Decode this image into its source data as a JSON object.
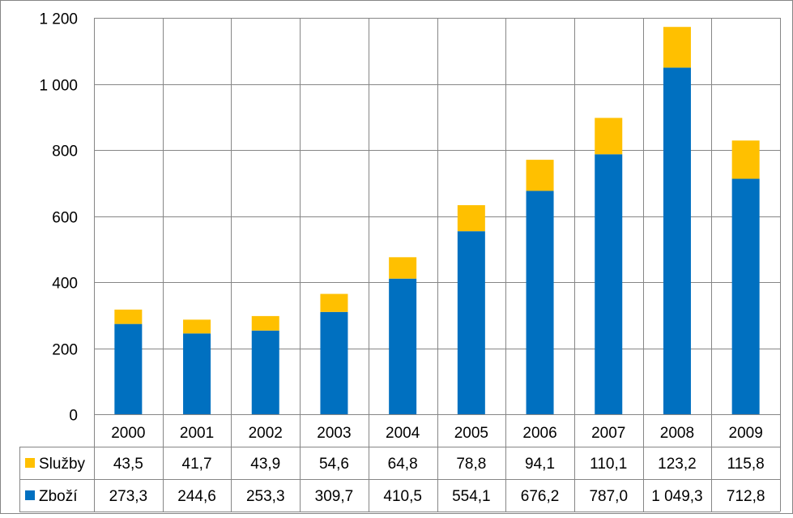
{
  "chart_data": {
    "type": "bar",
    "stacked": true,
    "categories": [
      "2000",
      "2001",
      "2002",
      "2003",
      "2004",
      "2005",
      "2006",
      "2007",
      "2008",
      "2009"
    ],
    "series": [
      {
        "name": "Zboží",
        "color": "#0070C0",
        "values": [
          273.3,
          244.6,
          253.3,
          309.7,
          410.5,
          554.1,
          676.2,
          787.0,
          1049.3,
          712.8
        ],
        "labels": [
          "273,3",
          "244,6",
          "253,3",
          "309,7",
          "410,5",
          "554,1",
          "676,2",
          "787,0",
          "1 049,3",
          "712,8"
        ]
      },
      {
        "name": "Služby",
        "color": "#FFC000",
        "values": [
          43.5,
          41.7,
          43.9,
          54.6,
          64.8,
          78.8,
          94.1,
          110.1,
          123.2,
          115.8
        ],
        "labels": [
          "43,5",
          "41,7",
          "43,9",
          "54,6",
          "64,8",
          "78,8",
          "94,1",
          "110,1",
          "123,2",
          "115,8"
        ]
      }
    ],
    "ylim": [
      0,
      1200
    ],
    "yticks": [
      0,
      200,
      400,
      600,
      800,
      1000,
      1200
    ],
    "ytick_labels": [
      "0",
      "200",
      "400",
      "600",
      "800",
      "1 000",
      "1 200"
    ],
    "grid": true,
    "legend": "data-table",
    "data_table_order": [
      "Služby",
      "Zboží"
    ]
  }
}
